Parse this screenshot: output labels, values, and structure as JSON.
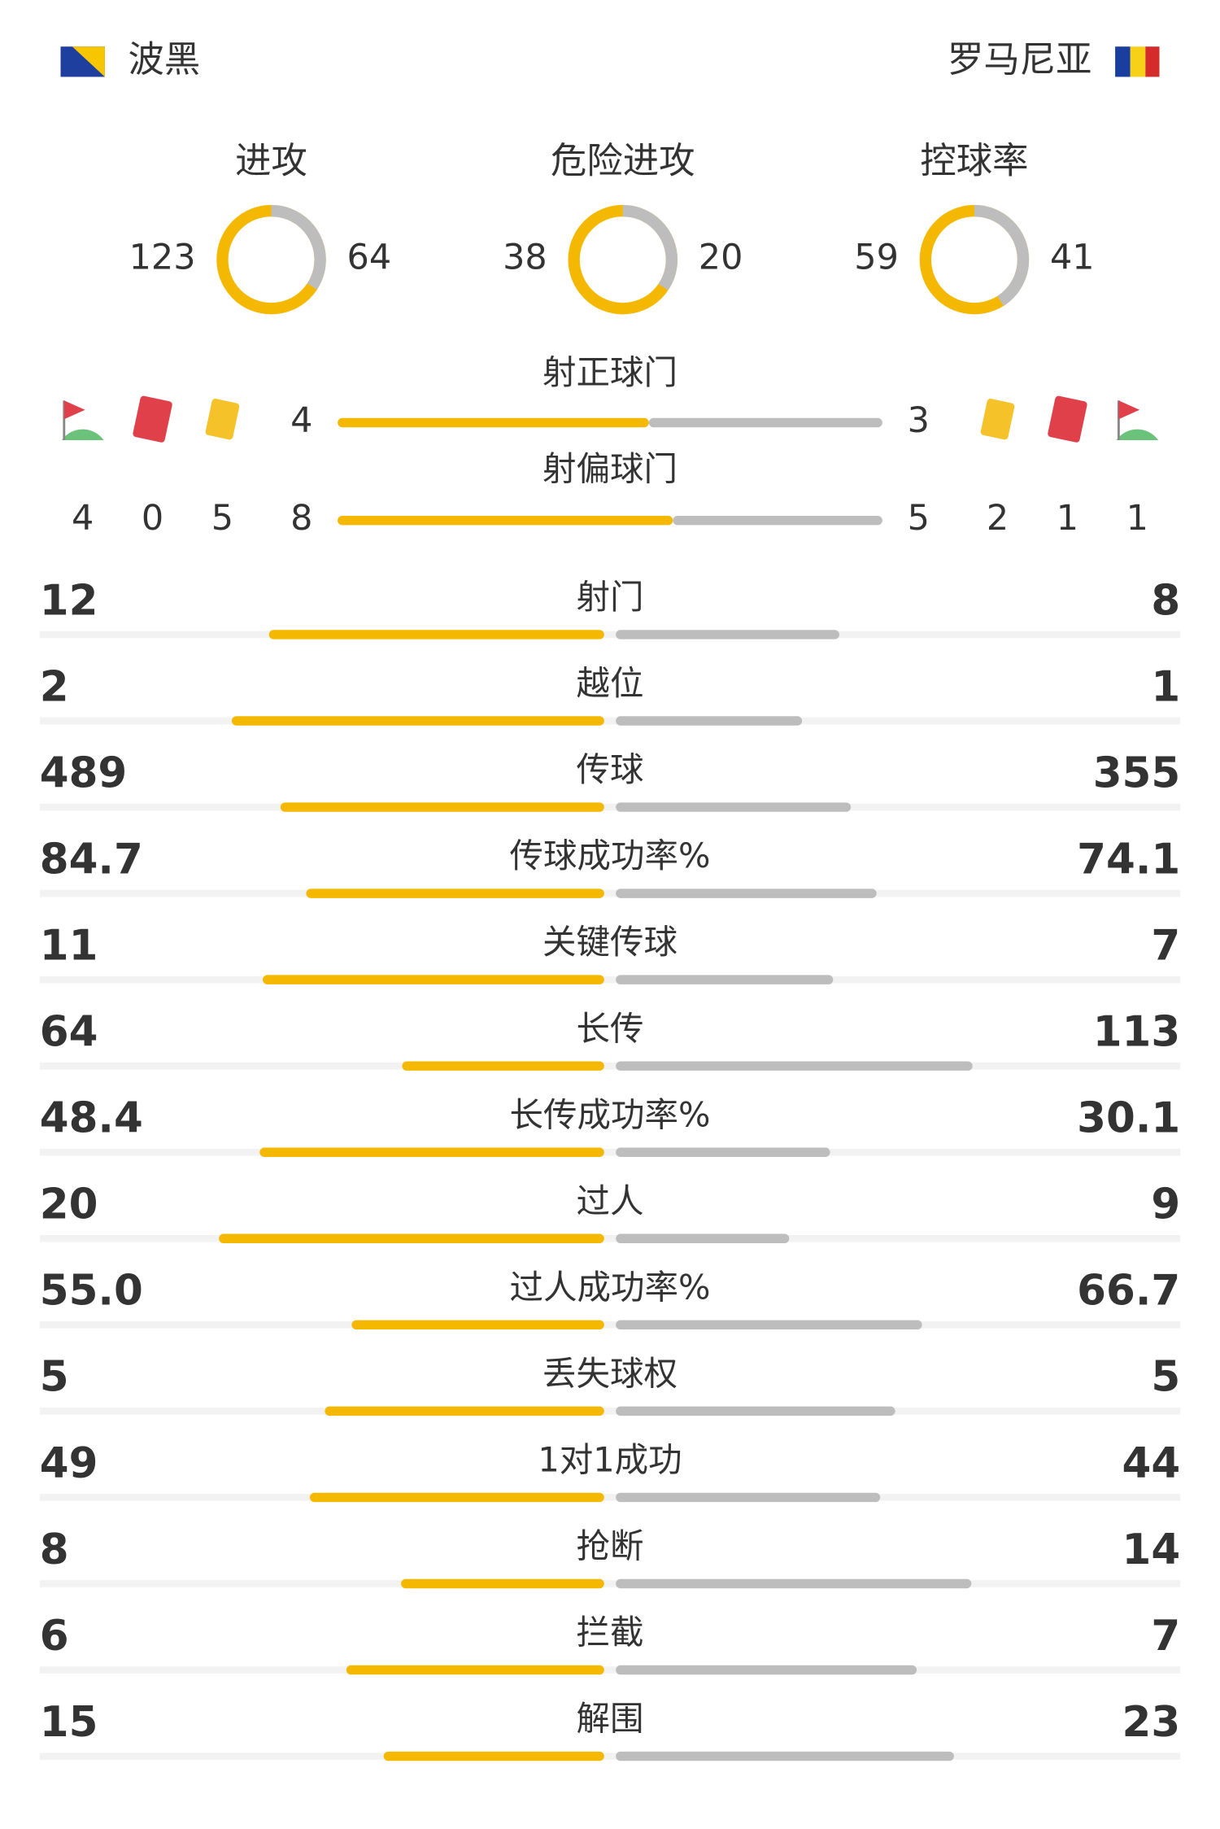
{
  "header": {
    "home": "波黑",
    "away": "罗马尼亚"
  },
  "donuts": [
    {
      "label": "进攻",
      "values": [
        123,
        64
      ]
    },
    {
      "label": "危险进攻",
      "values": [
        38,
        20
      ]
    },
    {
      "label": "控球率",
      "values": [
        59,
        41
      ]
    }
  ],
  "shots": [
    {
      "label": "射正球门",
      "values": [
        4,
        3
      ]
    },
    {
      "label": "射偏球门",
      "values": [
        8,
        5
      ]
    }
  ],
  "cards": {
    "home": {
      "corners": 4,
      "red": 0,
      "yellow": 5
    },
    "away": {
      "yellow": 2,
      "red": 1,
      "corners": 1
    }
  },
  "stats": [
    {
      "label": "射门",
      "values": [
        12,
        8
      ]
    },
    {
      "label": "越位",
      "values": [
        2,
        1
      ]
    },
    {
      "label": "传球",
      "values": [
        489,
        355
      ]
    },
    {
      "label": "传球成功率%",
      "values": [
        84.7,
        74.1
      ]
    },
    {
      "label": "关键传球",
      "values": [
        11,
        7
      ]
    },
    {
      "label": "长传",
      "values": [
        64,
        113
      ]
    },
    {
      "label": "长传成功率%",
      "values": [
        48.4,
        30.1
      ]
    },
    {
      "label": "过人",
      "values": [
        20,
        9
      ]
    },
    {
      "label": "过人成功率%",
      "values": [
        55.0,
        66.7
      ],
      "value_labels": [
        "55.0",
        "66.7"
      ]
    },
    {
      "label": "丢失球权",
      "values": [
        5,
        5
      ]
    },
    {
      "label": "1对1成功",
      "values": [
        49,
        44
      ]
    },
    {
      "label": "抢断",
      "values": [
        8,
        14
      ]
    },
    {
      "label": "拦截",
      "values": [
        6,
        7
      ]
    },
    {
      "label": "解围",
      "values": [
        15,
        23
      ]
    }
  ]
}
